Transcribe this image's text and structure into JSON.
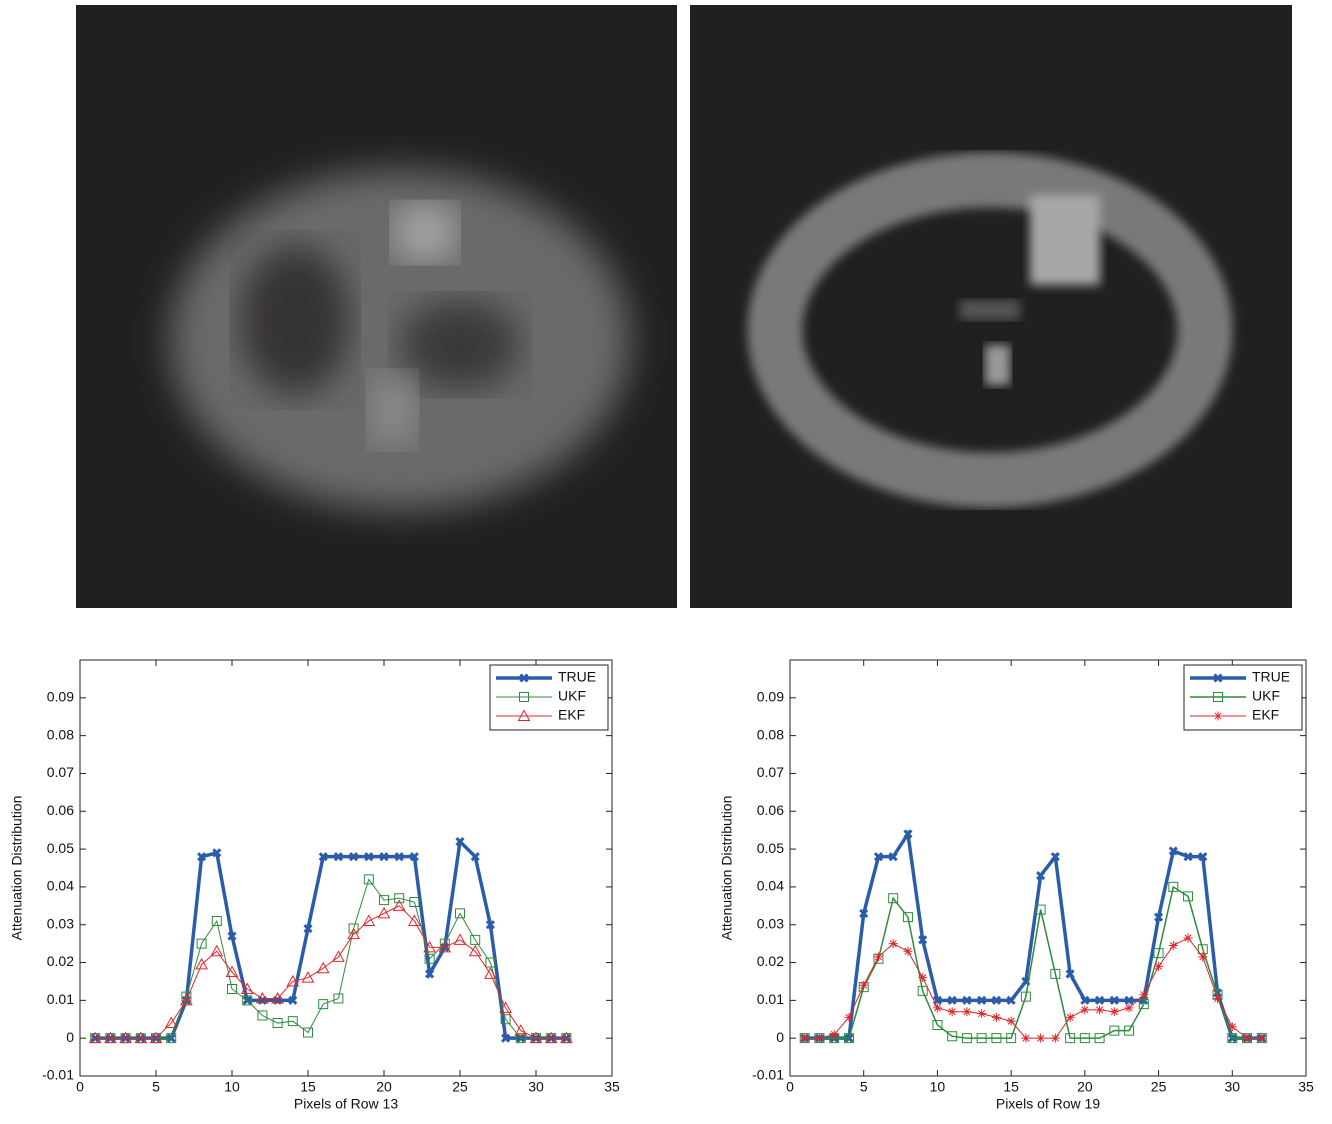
{
  "chart_data": [
    {
      "type": "line",
      "xlabel": "Pixels of Row 13",
      "ylabel": "Attenuation Distribution",
      "x": [
        1,
        2,
        3,
        4,
        5,
        6,
        7,
        8,
        9,
        10,
        11,
        12,
        13,
        14,
        15,
        16,
        17,
        18,
        19,
        20,
        21,
        22,
        23,
        24,
        25,
        26,
        27,
        28,
        29,
        30,
        31,
        32
      ],
      "xlim": [
        0,
        35
      ],
      "xticks": [
        0,
        5,
        10,
        15,
        20,
        25,
        30,
        35
      ],
      "ylim": [
        -0.01,
        0.1
      ],
      "yticks": [
        -0.01,
        0,
        0.01,
        0.02,
        0.03,
        0.04,
        0.05,
        0.06,
        0.07,
        0.08,
        0.09
      ],
      "legend": "upper right",
      "series": [
        {
          "name": "TRUE",
          "color": "#2b5caa",
          "marker": "x",
          "width": 3.5,
          "values": [
            0,
            0,
            0,
            0,
            0,
            0,
            0.01,
            0.048,
            0.049,
            0.027,
            0.01,
            0.01,
            0.01,
            0.01,
            0.029,
            0.048,
            0.048,
            0.048,
            0.048,
            0.048,
            0.048,
            0.048,
            0.017,
            0.024,
            0.052,
            0.048,
            0.03,
            0,
            0,
            0,
            0,
            0
          ]
        },
        {
          "name": "UKF",
          "color": "#2e8b3c",
          "marker": "square",
          "width": 1,
          "values": [
            0,
            0,
            0,
            0,
            0,
            0,
            0.011,
            0.025,
            0.031,
            0.013,
            0.01,
            0.006,
            0.004,
            0.0045,
            0.0015,
            0.009,
            0.0105,
            0.029,
            0.042,
            0.0365,
            0.037,
            0.036,
            0.021,
            0.025,
            0.033,
            0.026,
            0.02,
            0.005,
            0,
            0,
            0,
            0
          ]
        },
        {
          "name": "EKF",
          "color": "#e3242b",
          "marker": "triangle",
          "width": 1,
          "values": [
            0,
            0,
            0,
            0,
            0,
            0.004,
            0.01,
            0.0195,
            0.023,
            0.0175,
            0.013,
            0.0105,
            0.0105,
            0.015,
            0.016,
            0.0185,
            0.0215,
            0.0275,
            0.031,
            0.033,
            0.035,
            0.031,
            0.024,
            0.024,
            0.026,
            0.023,
            0.017,
            0.008,
            0.002,
            0,
            0,
            0
          ]
        }
      ]
    },
    {
      "type": "line",
      "xlabel": "Pixels of Row 19",
      "ylabel": "Attenuation Distribution",
      "x": [
        1,
        2,
        3,
        4,
        5,
        6,
        7,
        8,
        9,
        10,
        11,
        12,
        13,
        14,
        15,
        16,
        17,
        18,
        19,
        20,
        21,
        22,
        23,
        24,
        25,
        26,
        27,
        28,
        29,
        30,
        31,
        32
      ],
      "xlim": [
        0,
        35
      ],
      "xticks": [
        0,
        5,
        10,
        15,
        20,
        25,
        30,
        35
      ],
      "ylim": [
        -0.01,
        0.1
      ],
      "yticks": [
        -0.01,
        0,
        0.01,
        0.02,
        0.03,
        0.04,
        0.05,
        0.06,
        0.07,
        0.08,
        0.09
      ],
      "legend": "upper right",
      "series": [
        {
          "name": "TRUE",
          "color": "#2b5caa",
          "marker": "x",
          "width": 3.5,
          "values": [
            0,
            0,
            0,
            0,
            0.033,
            0.048,
            0.048,
            0.054,
            0.026,
            0.01,
            0.01,
            0.01,
            0.01,
            0.01,
            0.01,
            0.015,
            0.043,
            0.048,
            0.017,
            0.01,
            0.01,
            0.01,
            0.01,
            0.01,
            0.032,
            0.0495,
            0.048,
            0.048,
            0.012,
            0,
            0,
            0
          ]
        },
        {
          "name": "UKF",
          "color": "#2e8b3c",
          "marker": "square",
          "width": 1.5,
          "values": [
            0,
            0,
            0,
            0,
            0.0135,
            0.021,
            0.037,
            0.032,
            0.0125,
            0.0035,
            0.0005,
            0,
            0,
            0,
            0,
            0.011,
            0.034,
            0.017,
            0,
            0,
            0,
            0.002,
            0.002,
            0.009,
            0.0225,
            0.04,
            0.0375,
            0.0235,
            0.0115,
            0,
            0,
            0
          ]
        },
        {
          "name": "EKF",
          "color": "#e3242b",
          "marker": "asterisk",
          "width": 1,
          "values": [
            0,
            0,
            0.001,
            0.0055,
            0.014,
            0.0215,
            0.025,
            0.023,
            0.016,
            0.008,
            0.007,
            0.007,
            0.0065,
            0.0055,
            0.0045,
            0,
            0,
            0,
            0.0055,
            0.0075,
            0.0075,
            0.007,
            0.008,
            0.0115,
            0.019,
            0.0245,
            0.0265,
            0.0215,
            0.0105,
            0.003,
            0,
            0
          ]
        }
      ]
    }
  ]
}
